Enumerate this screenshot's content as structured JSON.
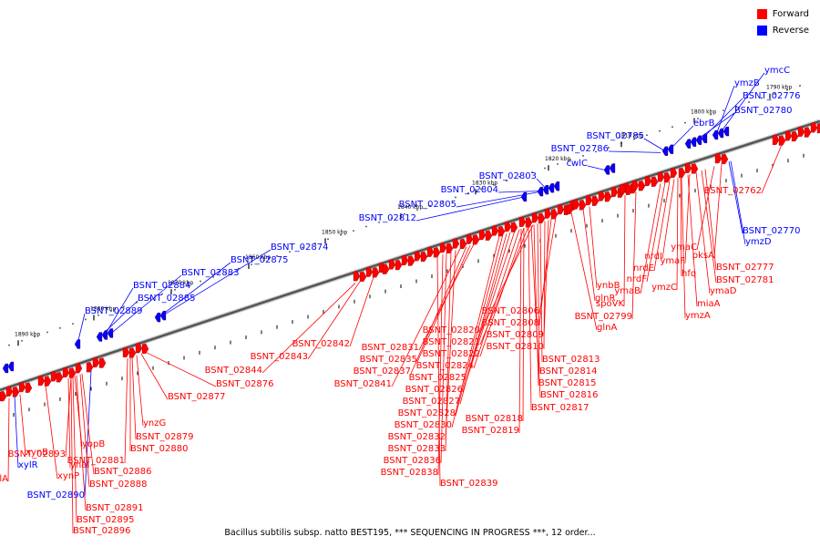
{
  "legend": [
    {
      "label": "Forward",
      "color": "#ff0000"
    },
    {
      "label": "Reverse",
      "color": "#0000ff"
    }
  ],
  "caption": "Bacillus subtilis subsp. natto BEST195, *** SEQUENCING IN PROGRESS ***, 12 order...",
  "scale_labels": [
    "1790 kbp",
    "1800 kbp",
    "1810 kbp",
    "1820 kbp",
    "1830 kbp",
    "1840 kbp",
    "1850 kbp",
    "1860 kbp",
    "1870 kbp",
    "1880 kbp",
    "1890 kbp"
  ],
  "colors": {
    "forward": "#ff0000",
    "reverse": "#0000ff",
    "backbone": "#555555"
  },
  "reverse_genes": [
    "ymcC",
    "ymzB",
    "BSNT_02776",
    "BSNT_02780",
    "ebrB",
    "BSNT_02785",
    "BSNT_02786",
    "cwlC",
    "BSNT_02803",
    "BSNT_02804",
    "BSNT_02805",
    "BSNT_02812",
    "BSNT_02874",
    "BSNT_02875",
    "BSNT_02883",
    "BSNT_02884",
    "BSNT_02885",
    "BSNT_02889",
    "BSNT_02770",
    "ymzD",
    "xylR",
    "BSNT_02890"
  ],
  "forward_genes": [
    "BSNT_02762",
    "ymaC",
    "pksA",
    "BSNT_02777",
    "ymaF",
    "BSNT_02781",
    "nrdI",
    "nrdE",
    "hfq",
    "ymaD",
    "ymzC",
    "miaA",
    "nrdF",
    "ymaB",
    "ymzA",
    "spoVK",
    "ynbB",
    "glnR",
    "BSNT_02799",
    "glnA",
    "BSNT_02806",
    "BSNT_02808",
    "BSNT_02809",
    "BSNT_02810",
    "BSNT_02813",
    "BSNT_02814",
    "BSNT_02815",
    "BSNT_02816",
    "BSNT_02817",
    "BSNT_02818",
    "BSNT_02819",
    "BSNT_02820",
    "BSNT_02821",
    "BSNT_02822",
    "BSNT_02824",
    "BSNT_02825",
    "BSNT_02826",
    "BSNT_02827",
    "BSNT_02828",
    "BSNT_02830",
    "BSNT_02831",
    "BSNT_02835",
    "BSNT_02837",
    "BSNT_02841",
    "BSNT_02832",
    "BSNT_02833",
    "BSNT_02836",
    "BSNT_02838",
    "BSNT_02839",
    "BSNT_02842",
    "BSNT_02843",
    "BSNT_02844",
    "BSNT_02876",
    "BSNT_02877",
    "ynzG",
    "BSNT_02879",
    "BSNT_02880",
    "BSNT_02881",
    "yopB",
    "BSNT_02893",
    "ynaI",
    "BSNT_02886",
    "BSNT_02888",
    "BSNT_02891",
    "BSNT_02895",
    "BSNT_02896",
    "xynB",
    "xylA",
    "xynP"
  ]
}
